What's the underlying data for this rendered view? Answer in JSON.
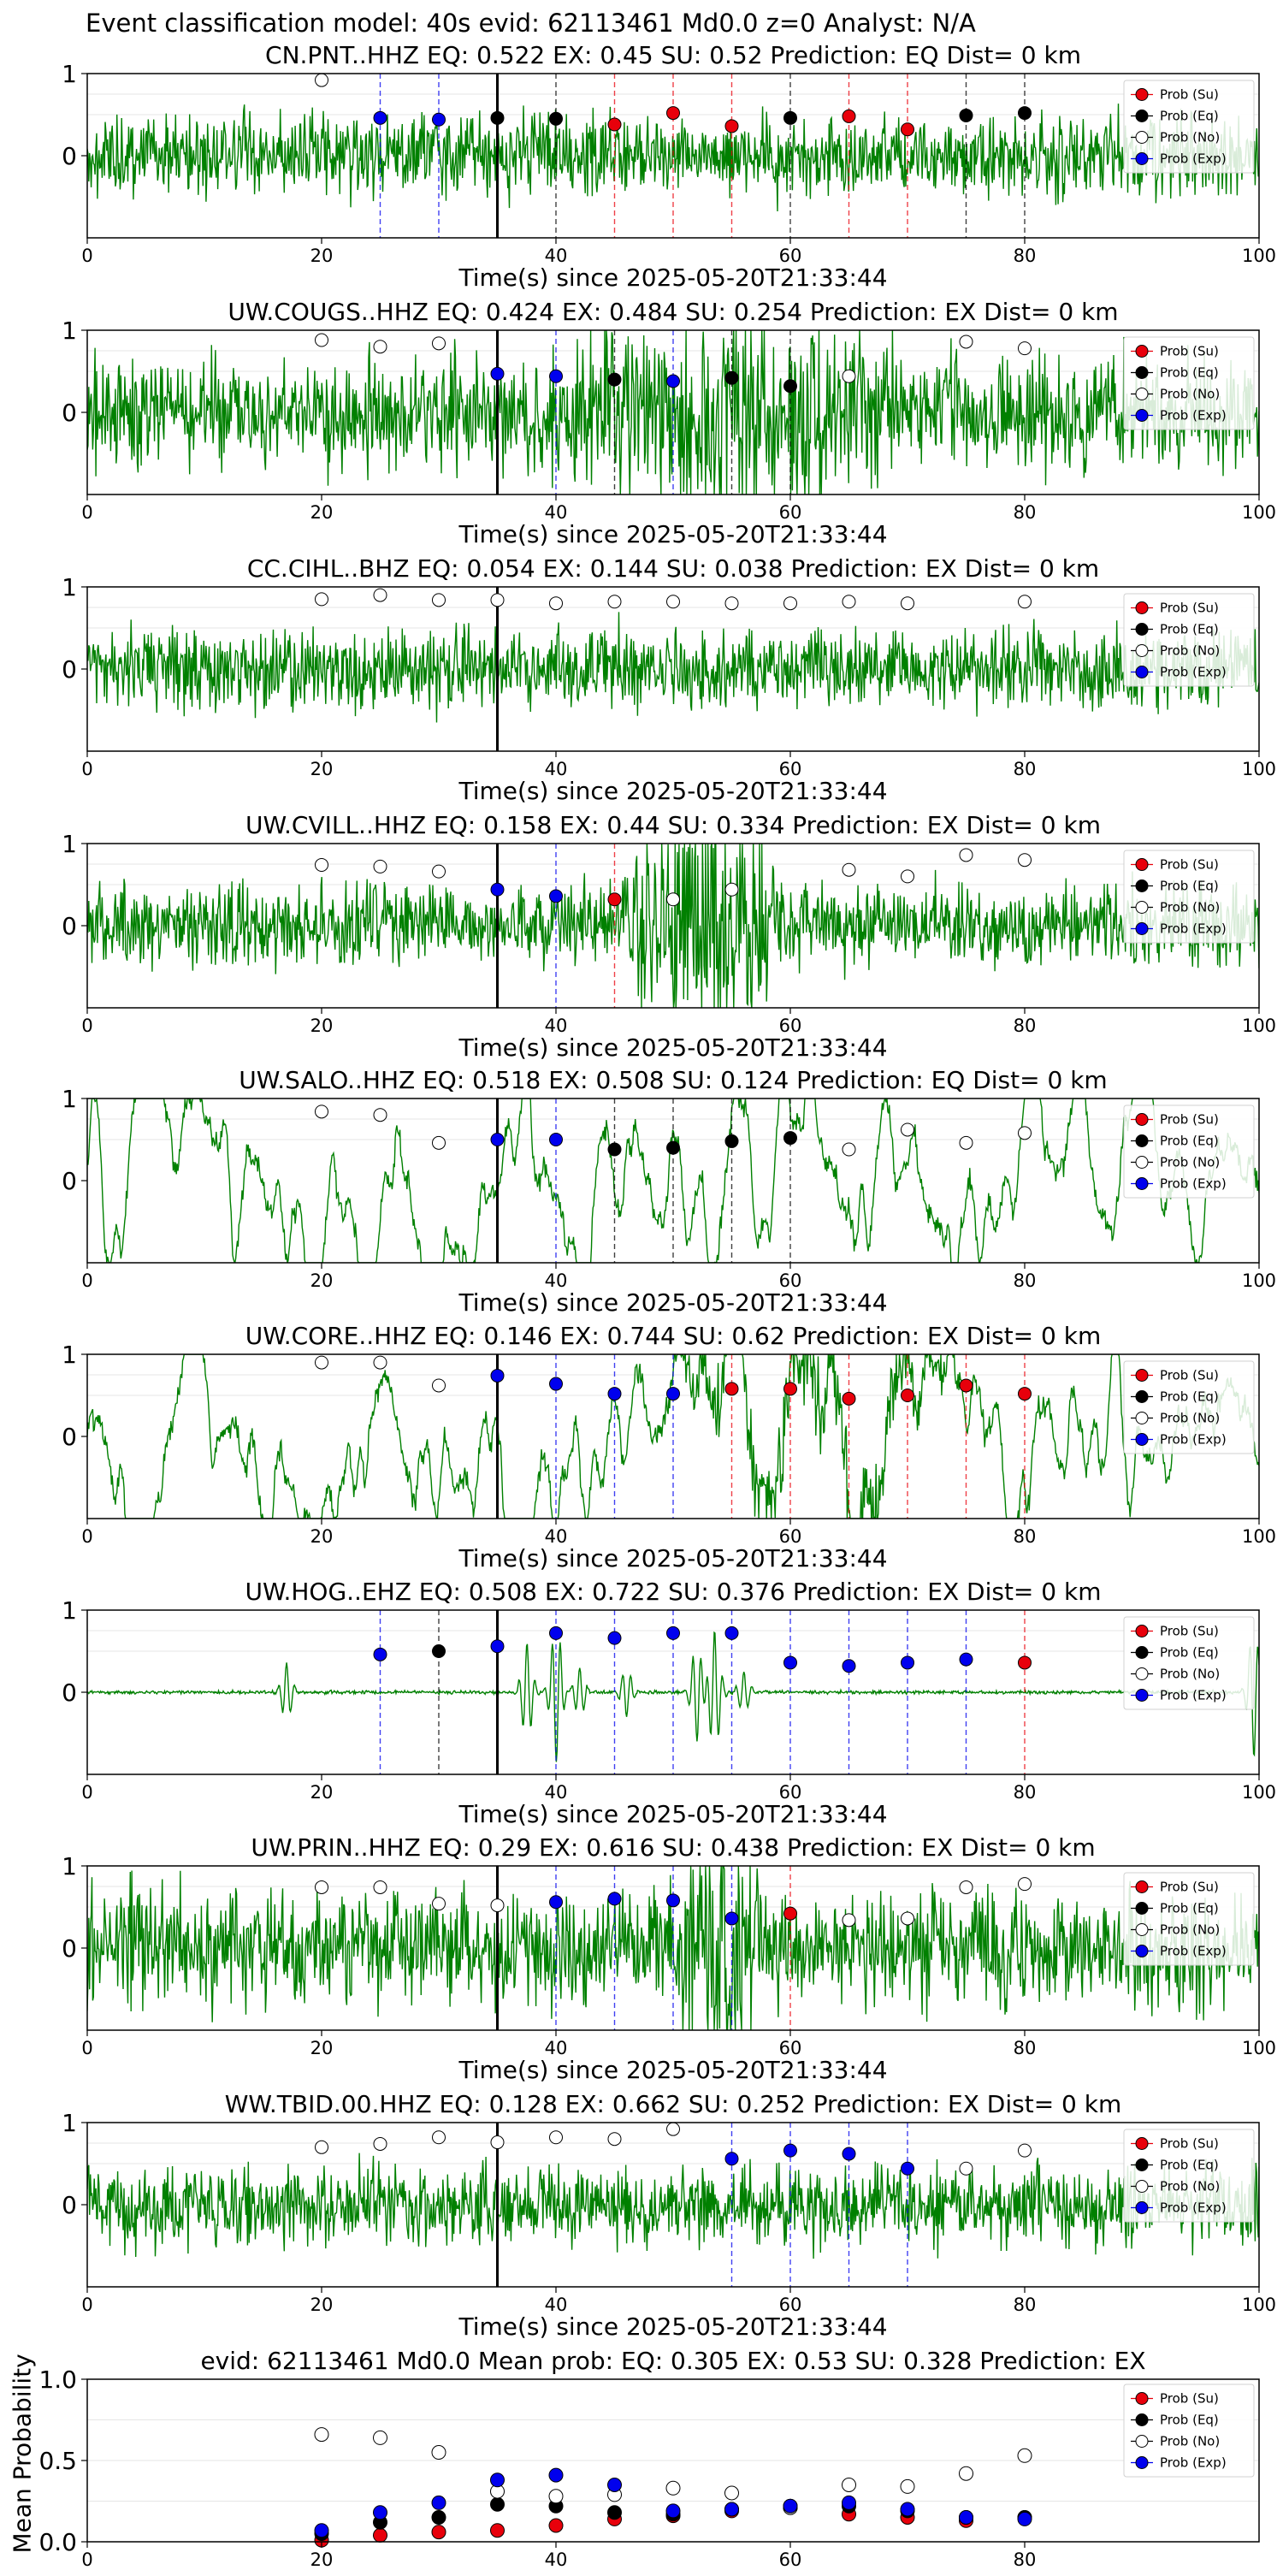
{
  "figure_title": "Event classification model: 40s evid: 62113461 Md0.0 z=0 Analyst: N/A",
  "colors": {
    "trace": "#008000",
    "su": "#e8000b",
    "eq": "#000000",
    "no": "#ffffff",
    "exp": "#0000ee",
    "origin_line": "#000000"
  },
  "legend_labels": [
    "Prob (Su)",
    "Prob (Eq)",
    "Prob (No)",
    "Prob (Exp)"
  ],
  "chart_data": [
    {
      "type": "line",
      "title": "CN.PNT..HHZ   EQ: 0.522  EX: 0.45  SU: 0.52   Prediction: EQ    Dist= 0 km",
      "xlabel": "Time(s) since 2025-05-20T21:33:44",
      "ylabel": "",
      "xlim": [
        0,
        100
      ],
      "ylim": [
        -1,
        1
      ],
      "xticks": [
        "0",
        "20",
        "40",
        "60",
        "80",
        "100"
      ],
      "yticks": [
        "1",
        "0"
      ],
      "origin_time": 35,
      "waveform": {
        "name": "CN.PNT..HHZ",
        "style": "moderate-noise"
      },
      "points": [
        {
          "x": 20,
          "y": 0.92,
          "cls": "no"
        },
        {
          "x": 25,
          "y": 0.46,
          "cls": "exp"
        },
        {
          "x": 30,
          "y": 0.44,
          "cls": "exp"
        },
        {
          "x": 35,
          "y": 0.46,
          "cls": "eq"
        },
        {
          "x": 40,
          "y": 0.45,
          "cls": "eq"
        },
        {
          "x": 45,
          "y": 0.38,
          "cls": "su"
        },
        {
          "x": 50,
          "y": 0.52,
          "cls": "su"
        },
        {
          "x": 55,
          "y": 0.36,
          "cls": "su"
        },
        {
          "x": 60,
          "y": 0.46,
          "cls": "eq"
        },
        {
          "x": 65,
          "y": 0.48,
          "cls": "su"
        },
        {
          "x": 70,
          "y": 0.32,
          "cls": "su"
        },
        {
          "x": 75,
          "y": 0.49,
          "cls": "eq"
        },
        {
          "x": 80,
          "y": 0.52,
          "cls": "eq"
        }
      ]
    },
    {
      "type": "line",
      "title": "UW.COUGS..HHZ   EQ: 0.424  EX: 0.484  SU: 0.254   Prediction: EX    Dist= 0 km",
      "xlabel": "Time(s) since 2025-05-20T21:33:44",
      "ylabel": "",
      "xlim": [
        0,
        100
      ],
      "ylim": [
        -1,
        1
      ],
      "xticks": [
        "0",
        "20",
        "40",
        "60",
        "80",
        "100"
      ],
      "yticks": [
        "1",
        "0"
      ],
      "origin_time": 35,
      "waveform": {
        "name": "UW.COUGS..HHZ",
        "style": "high-noise"
      },
      "points": [
        {
          "x": 20,
          "y": 0.88,
          "cls": "no"
        },
        {
          "x": 25,
          "y": 0.8,
          "cls": "no"
        },
        {
          "x": 30,
          "y": 0.84,
          "cls": "no"
        },
        {
          "x": 35,
          "y": 0.47,
          "cls": "exp"
        },
        {
          "x": 40,
          "y": 0.44,
          "cls": "exp"
        },
        {
          "x": 45,
          "y": 0.4,
          "cls": "eq"
        },
        {
          "x": 50,
          "y": 0.38,
          "cls": "exp"
        },
        {
          "x": 55,
          "y": 0.42,
          "cls": "eq"
        },
        {
          "x": 60,
          "y": 0.32,
          "cls": "eq"
        },
        {
          "x": 65,
          "y": 0.44,
          "cls": "no"
        },
        {
          "x": 75,
          "y": 0.86,
          "cls": "no"
        },
        {
          "x": 80,
          "y": 0.78,
          "cls": "no"
        }
      ]
    },
    {
      "type": "line",
      "title": "CC.CIHL..BHZ   EQ: 0.054  EX: 0.144  SU: 0.038   Prediction: EX    Dist= 0 km",
      "xlabel": "Time(s) since 2025-05-20T21:33:44",
      "ylabel": "",
      "xlim": [
        0,
        100
      ],
      "ylim": [
        -1,
        1
      ],
      "xticks": [
        "0",
        "20",
        "40",
        "60",
        "80",
        "100"
      ],
      "yticks": [
        "1",
        "0"
      ],
      "origin_time": 35,
      "waveform": {
        "name": "CC.CIHL..BHZ",
        "style": "moderate-noise"
      },
      "points": [
        {
          "x": 20,
          "y": 0.85,
          "cls": "no"
        },
        {
          "x": 25,
          "y": 0.9,
          "cls": "no"
        },
        {
          "x": 30,
          "y": 0.84,
          "cls": "no"
        },
        {
          "x": 35,
          "y": 0.84,
          "cls": "no"
        },
        {
          "x": 40,
          "y": 0.8,
          "cls": "no"
        },
        {
          "x": 45,
          "y": 0.82,
          "cls": "no"
        },
        {
          "x": 50,
          "y": 0.82,
          "cls": "no"
        },
        {
          "x": 55,
          "y": 0.8,
          "cls": "no"
        },
        {
          "x": 60,
          "y": 0.8,
          "cls": "no"
        },
        {
          "x": 65,
          "y": 0.82,
          "cls": "no"
        },
        {
          "x": 70,
          "y": 0.8,
          "cls": "no"
        },
        {
          "x": 80,
          "y": 0.82,
          "cls": "no"
        }
      ]
    },
    {
      "type": "line",
      "title": "UW.CVILL..HHZ   EQ: 0.158  EX: 0.44  SU: 0.334   Prediction: EX    Dist= 0 km",
      "xlabel": "Time(s) since 2025-05-20T21:33:44",
      "ylabel": "",
      "xlim": [
        0,
        100
      ],
      "ylim": [
        -1,
        1
      ],
      "xticks": [
        "0",
        "20",
        "40",
        "60",
        "80",
        "100"
      ],
      "yticks": [
        "1",
        "0"
      ],
      "origin_time": 35,
      "waveform": {
        "name": "UW.CVILL..HHZ",
        "style": "burst"
      },
      "points": [
        {
          "x": 20,
          "y": 0.74,
          "cls": "no"
        },
        {
          "x": 25,
          "y": 0.72,
          "cls": "no"
        },
        {
          "x": 30,
          "y": 0.66,
          "cls": "no"
        },
        {
          "x": 35,
          "y": 0.44,
          "cls": "exp"
        },
        {
          "x": 40,
          "y": 0.36,
          "cls": "exp"
        },
        {
          "x": 45,
          "y": 0.32,
          "cls": "su"
        },
        {
          "x": 50,
          "y": 0.32,
          "cls": "no"
        },
        {
          "x": 55,
          "y": 0.44,
          "cls": "no"
        },
        {
          "x": 65,
          "y": 0.68,
          "cls": "no"
        },
        {
          "x": 70,
          "y": 0.6,
          "cls": "no"
        },
        {
          "x": 75,
          "y": 0.86,
          "cls": "no"
        },
        {
          "x": 80,
          "y": 0.8,
          "cls": "no"
        }
      ]
    },
    {
      "type": "line",
      "title": "UW.SALO..HHZ   EQ: 0.518  EX: 0.508  SU: 0.124   Prediction: EQ    Dist= 0 km",
      "xlabel": "Time(s) since 2025-05-20T21:33:44",
      "ylabel": "",
      "xlim": [
        0,
        100
      ],
      "ylim": [
        -1,
        1
      ],
      "xticks": [
        "0",
        "20",
        "40",
        "60",
        "80",
        "100"
      ],
      "yticks": [
        "1",
        "0"
      ],
      "origin_time": 35,
      "waveform": {
        "name": "UW.SALO..HHZ",
        "style": "low-frequency"
      },
      "points": [
        {
          "x": 20,
          "y": 0.84,
          "cls": "no"
        },
        {
          "x": 25,
          "y": 0.8,
          "cls": "no"
        },
        {
          "x": 30,
          "y": 0.46,
          "cls": "no"
        },
        {
          "x": 35,
          "y": 0.5,
          "cls": "exp"
        },
        {
          "x": 40,
          "y": 0.5,
          "cls": "exp"
        },
        {
          "x": 45,
          "y": 0.38,
          "cls": "eq"
        },
        {
          "x": 50,
          "y": 0.4,
          "cls": "eq"
        },
        {
          "x": 55,
          "y": 0.48,
          "cls": "eq"
        },
        {
          "x": 60,
          "y": 0.52,
          "cls": "eq"
        },
        {
          "x": 65,
          "y": 0.38,
          "cls": "no"
        },
        {
          "x": 70,
          "y": 0.62,
          "cls": "no"
        },
        {
          "x": 75,
          "y": 0.46,
          "cls": "no"
        },
        {
          "x": 80,
          "y": 0.58,
          "cls": "no"
        }
      ]
    },
    {
      "type": "line",
      "title": "UW.CORE..HHZ   EQ: 0.146  EX: 0.744  SU: 0.62   Prediction: EX    Dist= 0 km",
      "xlabel": "Time(s) since 2025-05-20T21:33:44",
      "ylabel": "",
      "xlim": [
        0,
        100
      ],
      "ylim": [
        -1,
        1
      ],
      "xticks": [
        "0",
        "20",
        "40",
        "60",
        "80",
        "100"
      ],
      "yticks": [
        "1",
        "0"
      ],
      "origin_time": 35,
      "waveform": {
        "name": "UW.CORE..HHZ",
        "style": "low-frequency-burst"
      },
      "points": [
        {
          "x": 20,
          "y": 0.9,
          "cls": "no"
        },
        {
          "x": 25,
          "y": 0.9,
          "cls": "no"
        },
        {
          "x": 30,
          "y": 0.62,
          "cls": "no"
        },
        {
          "x": 35,
          "y": 0.74,
          "cls": "exp"
        },
        {
          "x": 40,
          "y": 0.64,
          "cls": "exp"
        },
        {
          "x": 45,
          "y": 0.52,
          "cls": "exp"
        },
        {
          "x": 50,
          "y": 0.52,
          "cls": "exp"
        },
        {
          "x": 55,
          "y": 0.58,
          "cls": "su"
        },
        {
          "x": 60,
          "y": 0.58,
          "cls": "su"
        },
        {
          "x": 65,
          "y": 0.46,
          "cls": "su"
        },
        {
          "x": 70,
          "y": 0.5,
          "cls": "su"
        },
        {
          "x": 75,
          "y": 0.62,
          "cls": "su"
        },
        {
          "x": 80,
          "y": 0.52,
          "cls": "su"
        }
      ]
    },
    {
      "type": "line",
      "title": "UW.HOG..EHZ   EQ: 0.508  EX: 0.722  SU: 0.376   Prediction: EX    Dist= 0 km",
      "xlabel": "Time(s) since 2025-05-20T21:33:44",
      "ylabel": "",
      "xlim": [
        0,
        100
      ],
      "ylim": [
        -1,
        1
      ],
      "xticks": [
        "0",
        "20",
        "40",
        "60",
        "80",
        "100"
      ],
      "yticks": [
        "1",
        "0"
      ],
      "origin_time": 35,
      "waveform": {
        "name": "UW.HOG..EHZ",
        "style": "quiet-spikes"
      },
      "points": [
        {
          "x": 25,
          "y": 0.46,
          "cls": "exp"
        },
        {
          "x": 30,
          "y": 0.5,
          "cls": "eq"
        },
        {
          "x": 35,
          "y": 0.56,
          "cls": "exp"
        },
        {
          "x": 40,
          "y": 0.72,
          "cls": "exp"
        },
        {
          "x": 45,
          "y": 0.66,
          "cls": "exp"
        },
        {
          "x": 50,
          "y": 0.72,
          "cls": "exp"
        },
        {
          "x": 55,
          "y": 0.72,
          "cls": "exp"
        },
        {
          "x": 60,
          "y": 0.36,
          "cls": "exp"
        },
        {
          "x": 65,
          "y": 0.32,
          "cls": "exp"
        },
        {
          "x": 70,
          "y": 0.36,
          "cls": "exp"
        },
        {
          "x": 75,
          "y": 0.4,
          "cls": "exp"
        },
        {
          "x": 80,
          "y": 0.36,
          "cls": "su"
        }
      ]
    },
    {
      "type": "line",
      "title": "UW.PRIN..HHZ   EQ: 0.29  EX: 0.616  SU: 0.438   Prediction: EX    Dist= 0 km",
      "xlabel": "Time(s) since 2025-05-20T21:33:44",
      "ylabel": "",
      "xlim": [
        0,
        100
      ],
      "ylim": [
        -1,
        1
      ],
      "xticks": [
        "0",
        "20",
        "40",
        "60",
        "80",
        "100"
      ],
      "yticks": [
        "1",
        "0"
      ],
      "origin_time": 35,
      "waveform": {
        "name": "UW.PRIN..HHZ",
        "style": "high-noise-burst"
      },
      "points": [
        {
          "x": 20,
          "y": 0.74,
          "cls": "no"
        },
        {
          "x": 25,
          "y": 0.74,
          "cls": "no"
        },
        {
          "x": 30,
          "y": 0.54,
          "cls": "no"
        },
        {
          "x": 35,
          "y": 0.52,
          "cls": "no"
        },
        {
          "x": 40,
          "y": 0.56,
          "cls": "exp"
        },
        {
          "x": 45,
          "y": 0.6,
          "cls": "exp"
        },
        {
          "x": 50,
          "y": 0.58,
          "cls": "exp"
        },
        {
          "x": 55,
          "y": 0.36,
          "cls": "exp"
        },
        {
          "x": 60,
          "y": 0.42,
          "cls": "su"
        },
        {
          "x": 65,
          "y": 0.34,
          "cls": "no"
        },
        {
          "x": 70,
          "y": 0.36,
          "cls": "no"
        },
        {
          "x": 75,
          "y": 0.74,
          "cls": "no"
        },
        {
          "x": 80,
          "y": 0.78,
          "cls": "no"
        }
      ]
    },
    {
      "type": "line",
      "title": "WW.TBID.00.HHZ   EQ: 0.128  EX: 0.662  SU: 0.252   Prediction: EX    Dist= 0 km",
      "xlabel": "Time(s) since 2025-05-20T21:33:44",
      "ylabel": "",
      "xlim": [
        0,
        100
      ],
      "ylim": [
        -1,
        1
      ],
      "xticks": [
        "0",
        "20",
        "40",
        "60",
        "80",
        "100"
      ],
      "yticks": [
        "1",
        "0"
      ],
      "origin_time": 35,
      "waveform": {
        "name": "WW.TBID.00.HHZ",
        "style": "moderate-noise"
      },
      "points": [
        {
          "x": 20,
          "y": 0.7,
          "cls": "no"
        },
        {
          "x": 25,
          "y": 0.74,
          "cls": "no"
        },
        {
          "x": 30,
          "y": 0.82,
          "cls": "no"
        },
        {
          "x": 35,
          "y": 0.76,
          "cls": "no"
        },
        {
          "x": 40,
          "y": 0.82,
          "cls": "no"
        },
        {
          "x": 45,
          "y": 0.8,
          "cls": "no"
        },
        {
          "x": 50,
          "y": 0.92,
          "cls": "no"
        },
        {
          "x": 55,
          "y": 0.56,
          "cls": "exp"
        },
        {
          "x": 60,
          "y": 0.66,
          "cls": "exp"
        },
        {
          "x": 65,
          "y": 0.62,
          "cls": "exp"
        },
        {
          "x": 70,
          "y": 0.44,
          "cls": "exp"
        },
        {
          "x": 75,
          "y": 0.44,
          "cls": "no"
        },
        {
          "x": 80,
          "y": 0.66,
          "cls": "no"
        }
      ]
    },
    {
      "type": "scatter",
      "title": "evid: 62113461  Md0.0   Mean prob:   EQ: 0.305  EX: 0.53  SU: 0.328   Prediction: EX",
      "xlabel": "",
      "ylabel": "Mean Probability",
      "xlim": [
        0,
        100
      ],
      "ylim": [
        0,
        1
      ],
      "xticks": [
        "0",
        "20",
        "40",
        "60",
        "80"
      ],
      "yticks": [
        "1.0",
        "0.5",
        "0.0"
      ],
      "grid": true,
      "series": [
        {
          "name": "Prob (Su)",
          "cls": "su",
          "x": [
            20,
            25,
            30,
            35,
            40,
            45,
            50,
            55,
            60,
            65,
            70,
            75,
            80
          ],
          "y": [
            0.01,
            0.04,
            0.06,
            0.07,
            0.1,
            0.14,
            0.16,
            0.19,
            0.22,
            0.17,
            0.15,
            0.13,
            0.15
          ]
        },
        {
          "name": "Prob (Eq)",
          "cls": "eq",
          "x": [
            20,
            25,
            30,
            35,
            40,
            45,
            50,
            55,
            60,
            65,
            70,
            75,
            80
          ],
          "y": [
            0.05,
            0.12,
            0.15,
            0.23,
            0.22,
            0.18,
            0.17,
            0.2,
            0.21,
            0.22,
            0.19,
            0.15,
            0.15
          ]
        },
        {
          "name": "Prob (No)",
          "cls": "no",
          "x": [
            20,
            25,
            30,
            35,
            40,
            45,
            50,
            55,
            60,
            65,
            70,
            75,
            80
          ],
          "y": [
            0.66,
            0.64,
            0.55,
            0.31,
            0.28,
            0.29,
            0.33,
            0.3,
            0.21,
            0.35,
            0.34,
            0.42,
            0.53
          ]
        },
        {
          "name": "Prob (Exp)",
          "cls": "exp",
          "x": [
            20,
            25,
            30,
            35,
            40,
            45,
            50,
            55,
            60,
            65,
            70,
            75,
            80
          ],
          "y": [
            0.07,
            0.18,
            0.24,
            0.38,
            0.41,
            0.35,
            0.19,
            0.2,
            0.22,
            0.24,
            0.2,
            0.15,
            0.14
          ]
        }
      ]
    }
  ]
}
